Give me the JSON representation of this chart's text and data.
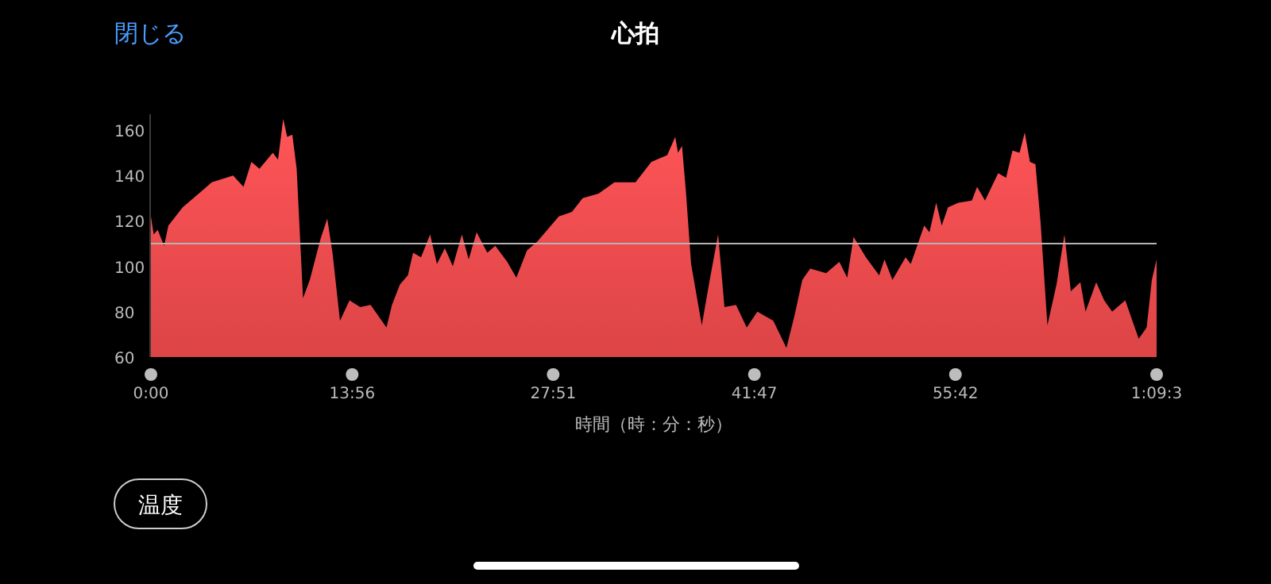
{
  "chart_data": {
    "type": "area",
    "title": "心拍",
    "xlabel": "時間（時：分：秒）",
    "annotations": [
      "閉じる",
      "温度"
    ],
    "x": [
      0,
      0.19,
      0.47,
      0.91,
      1.21,
      2.2,
      2.94,
      4.21,
      5.69,
      6.41,
      6.96,
      7.51,
      8.44,
      8.8,
      9.16,
      9.43,
      9.79,
      10.09,
      10.53,
      11.0,
      11.74,
      12.21,
      12.57,
      13.09,
      13.75,
      14.49,
      15.21,
      15.76,
      16.31,
      16.69,
      17.24,
      17.79,
      18.15,
      18.7,
      19.33,
      19.8,
      20.35,
      20.9,
      21.53,
      22.0,
      22.55,
      23.29,
      23.84,
      24.67,
      25.3,
      26.04,
      26.76,
      28.24,
      29.15,
      29.89,
      30.99,
      32.09,
      33.55,
      34.65,
      35.75,
      36.3,
      36.49,
      36.77,
      37.04,
      37.4,
      38.14,
      38.69,
      39.27,
      39.71,
      40.51,
      41.25,
      41.99,
      43.09,
      44.0,
      44.55,
      45.1,
      45.65,
      46.75,
      47.66,
      48.21,
      48.65,
      49.5,
      50.42,
      50.79,
      51.34,
      52.25,
      52.61,
      53.54,
      53.9,
      54.37,
      54.75,
      55.19,
      55.91,
      56.84,
      57.2,
      57.75,
      58.66,
      59.21,
      59.65,
      60.14,
      60.5,
      60.86,
      61.24,
      61.6,
      62.07,
      62.7,
      63.25,
      63.69,
      64.35,
      64.71,
      65.45,
      66.0,
      66.55,
      67.46,
      68.39,
      68.94,
      69.3,
      69.63
    ],
    "series": [
      {
        "color": "#f04a4c",
        "values": [
          122,
          114,
          116,
          109,
          118,
          126,
          130,
          137,
          140,
          135,
          146,
          143,
          150,
          147,
          165,
          157,
          158,
          143,
          86,
          94,
          112,
          121,
          106,
          76,
          85,
          82,
          83,
          78,
          73,
          83,
          92,
          96,
          106,
          104,
          114,
          101,
          108,
          100,
          114,
          103,
          115,
          106,
          109,
          102,
          95,
          107,
          111,
          122,
          124,
          130,
          132,
          137,
          137,
          146,
          149,
          157,
          150,
          153,
          133,
          101,
          74,
          94,
          114,
          82,
          83,
          73,
          80,
          76,
          64,
          78,
          94,
          99,
          97,
          102,
          95,
          113,
          104,
          96,
          103,
          94,
          104,
          101,
          118,
          115,
          128,
          118,
          126,
          128,
          129,
          135,
          129,
          141,
          139,
          151,
          150,
          159,
          146,
          145,
          119,
          74,
          92,
          114,
          89,
          93,
          80,
          93,
          85,
          80,
          85,
          68,
          73,
          94,
          103
        ]
      }
    ],
    "xlim": [
      0,
      69.63
    ],
    "xticks": [
      {
        "value": 0,
        "label": "0:00"
      },
      {
        "value": 13.933,
        "label": "13:56"
      },
      {
        "value": 27.85,
        "label": "27:51"
      },
      {
        "value": 41.783,
        "label": "41:47"
      },
      {
        "value": 55.7,
        "label": "55:42"
      },
      {
        "value": 69.63,
        "label": "1:09:3"
      }
    ],
    "ylim": [
      60,
      167
    ],
    "yticks": [
      60,
      80,
      100,
      120,
      140,
      160
    ],
    "ref_lines": [
      {
        "axis": "y",
        "value": 110,
        "color": "#b4b4b4"
      }
    ],
    "grid": false
  }
}
